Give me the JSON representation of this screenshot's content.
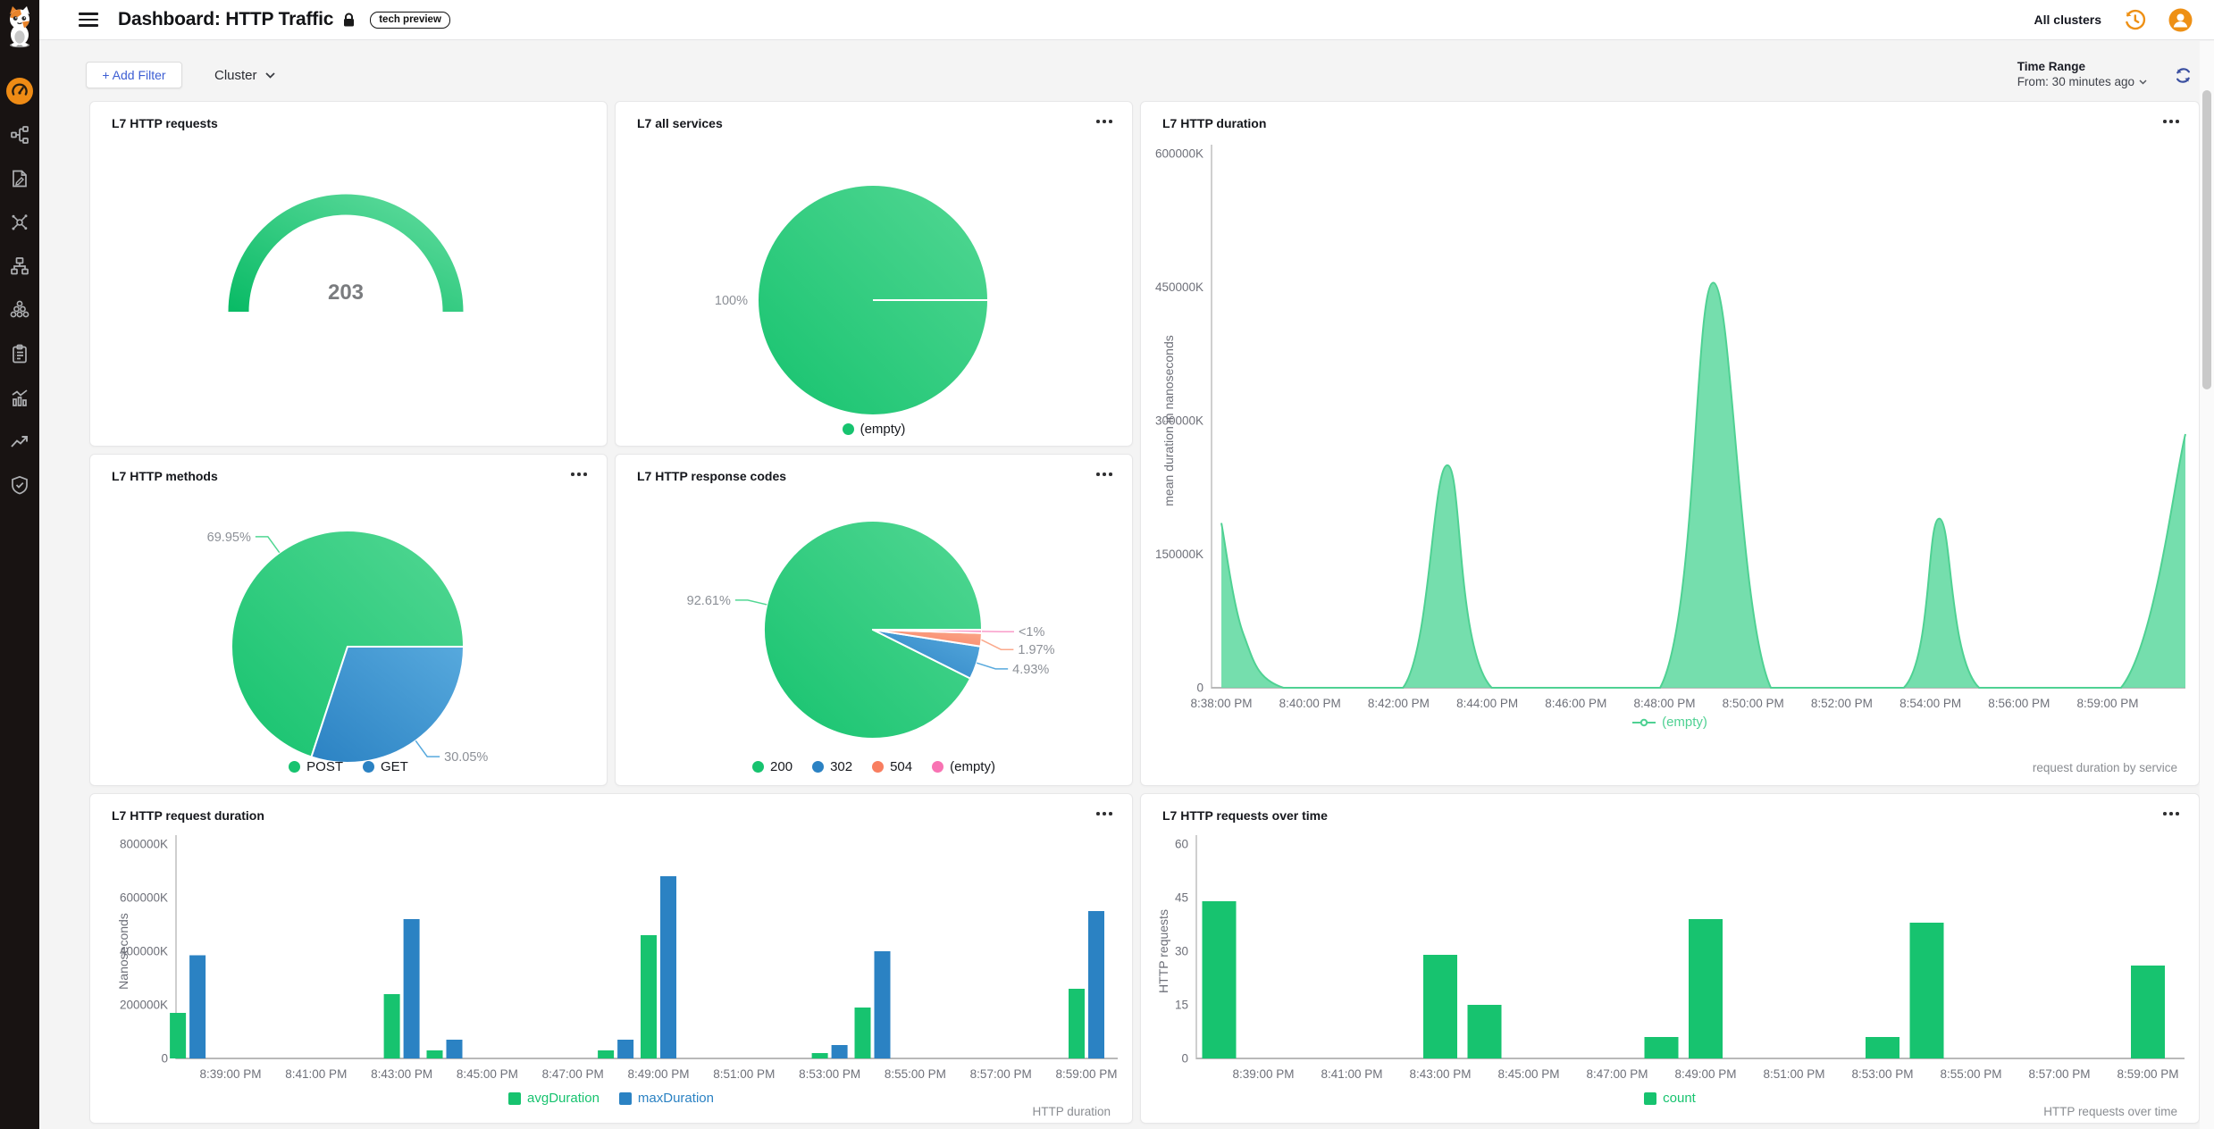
{
  "palette": {
    "green": "#17c36f",
    "green_light": "#52d793",
    "blue": "#2b82c3",
    "blue_light": "#57a9dd",
    "salmon": "#f87e60",
    "salmon_light": "#fba98c",
    "pink": "#f873b3",
    "pink_light": "#fa9cc9",
    "gauge_dark": "#0abb66",
    "gauge_light": "#5fdb9d",
    "area_fill": "#69dba6",
    "area_line": "#4fd193",
    "orange": "#ee9015",
    "accent_blue": "#3d5ed3",
    "refresh_blue": "#3a4fa0",
    "tick_text": "#6e7079",
    "pct_text": "#8c9097"
  },
  "topbar": {
    "title": "Dashboard: HTTP Traffic",
    "badge": "tech preview",
    "all_clusters": "All clusters"
  },
  "filterbar": {
    "add_filter": "+ Add Filter",
    "cluster": "Cluster",
    "time_range_label": "Time Range",
    "time_range_value": "From: 30 minutes ago"
  },
  "sidebar": {
    "items": [
      {
        "icon": "dashboard-gauge-icon",
        "active": true
      },
      {
        "icon": "service-map-icon",
        "active": false
      },
      {
        "icon": "policy-editor-icon",
        "active": false
      },
      {
        "icon": "network-hub-icon",
        "active": false
      },
      {
        "icon": "sitemap-icon",
        "active": false
      },
      {
        "icon": "cluster-circles-icon",
        "active": false
      },
      {
        "icon": "clipboard-icon",
        "active": false
      },
      {
        "icon": "metrics-bars-icon",
        "active": false
      },
      {
        "icon": "trend-arrow-icon",
        "active": false
      },
      {
        "icon": "shield-check-icon",
        "active": false
      }
    ]
  },
  "cards": {
    "requests": {
      "title": "L7 HTTP requests",
      "value": "203"
    },
    "services": {
      "title": "L7 all services",
      "slices": [
        {
          "label": "(empty)",
          "pct": 100,
          "pct_label": "100%",
          "color": "green"
        }
      ]
    },
    "duration": {
      "title": "L7 HTTP duration",
      "axis_label": "mean duration in nanoseconds",
      "legend": "(empty)",
      "footer": "request duration by service",
      "y_ticks": [
        "600000K",
        "450000K",
        "300000K",
        "150000K",
        "0"
      ],
      "y_max": 600000,
      "x_ticks": [
        "8:38:00 PM",
        "8:40:00 PM",
        "8:42:00 PM",
        "8:44:00 PM",
        "8:46:00 PM",
        "8:48:00 PM",
        "8:50:00 PM",
        "8:52:00 PM",
        "8:54:00 PM",
        "8:56:00 PM",
        "8:59:00 PM"
      ],
      "points": [
        [
          0,
          185000
        ],
        [
          0.25,
          60000
        ],
        [
          0.7,
          0
        ],
        [
          2.05,
          0
        ],
        [
          2.55,
          250000
        ],
        [
          3.05,
          0
        ],
        [
          4.95,
          0
        ],
        [
          5.55,
          455000
        ],
        [
          6.2,
          0
        ],
        [
          7.7,
          0
        ],
        [
          8.1,
          190000
        ],
        [
          8.55,
          0
        ],
        [
          10.15,
          0
        ],
        [
          10.9,
          285000
        ]
      ]
    },
    "methods": {
      "title": "L7 HTTP methods",
      "slices": [
        {
          "label": "POST",
          "pct": 69.95,
          "pct_label": "69.95%",
          "color": "green"
        },
        {
          "label": "GET",
          "pct": 30.05,
          "pct_label": "30.05%",
          "color": "blue"
        }
      ]
    },
    "codes": {
      "title": "L7 HTTP response codes",
      "slices": [
        {
          "label": "200",
          "pct": 92.61,
          "pct_label": "92.61%",
          "color": "green"
        },
        {
          "label": "302",
          "pct": 4.93,
          "pct_label": "4.93%",
          "color": "blue"
        },
        {
          "label": "504",
          "pct": 1.97,
          "pct_label": "1.97%",
          "color": "salmon"
        },
        {
          "label": "(empty)",
          "pct": 0.49,
          "pct_label": "<1%",
          "color": "pink"
        }
      ]
    },
    "request_duration": {
      "title": "L7 HTTP request duration",
      "axis_label": "Nanoseconds",
      "footer": "HTTP duration",
      "y_ticks": [
        "800000K",
        "600000K",
        "400000K",
        "200000K",
        "0"
      ],
      "y_max": 800000,
      "x_ticks": [
        "8:39:00 PM",
        "8:41:00 PM",
        "8:43:00 PM",
        "8:45:00 PM",
        "8:47:00 PM",
        "8:49:00 PM",
        "8:51:00 PM",
        "8:53:00 PM",
        "8:55:00 PM",
        "8:57:00 PM",
        "8:59:00 PM"
      ],
      "legend": [
        {
          "label": "avgDuration",
          "color": "green"
        },
        {
          "label": "maxDuration",
          "color": "blue"
        }
      ],
      "bars": [
        {
          "minute": 0,
          "avg": 170000,
          "max": 385000
        },
        {
          "minute": 5,
          "avg": 240000,
          "max": 520000
        },
        {
          "minute": 6,
          "avg": 30000,
          "max": 70000
        },
        {
          "minute": 10,
          "avg": 30000,
          "max": 70000
        },
        {
          "minute": 11,
          "avg": 460000,
          "max": 680000
        },
        {
          "minute": 15,
          "avg": 20000,
          "max": 50000
        },
        {
          "minute": 16,
          "avg": 190000,
          "max": 400000
        },
        {
          "minute": 21,
          "avg": 260000,
          "max": 550000
        }
      ]
    },
    "requests_over_time": {
      "title": "L7 HTTP requests over time",
      "axis_label": "HTTP requests",
      "footer": "HTTP requests over time",
      "y_ticks": [
        "60",
        "45",
        "30",
        "15",
        "0"
      ],
      "y_max": 60,
      "x_ticks": [
        "8:39:00 PM",
        "8:41:00 PM",
        "8:43:00 PM",
        "8:45:00 PM",
        "8:47:00 PM",
        "8:49:00 PM",
        "8:51:00 PM",
        "8:53:00 PM",
        "8:55:00 PM",
        "8:57:00 PM",
        "8:59:00 PM"
      ],
      "legend": [
        {
          "label": "count",
          "color": "green"
        }
      ],
      "bars": [
        {
          "minute": 0,
          "count": 44
        },
        {
          "minute": 5,
          "count": 29
        },
        {
          "minute": 6,
          "count": 15
        },
        {
          "minute": 10,
          "count": 6
        },
        {
          "minute": 11,
          "count": 39
        },
        {
          "minute": 15,
          "count": 6
        },
        {
          "minute": 16,
          "count": 38
        },
        {
          "minute": 21,
          "count": 26
        }
      ]
    }
  }
}
